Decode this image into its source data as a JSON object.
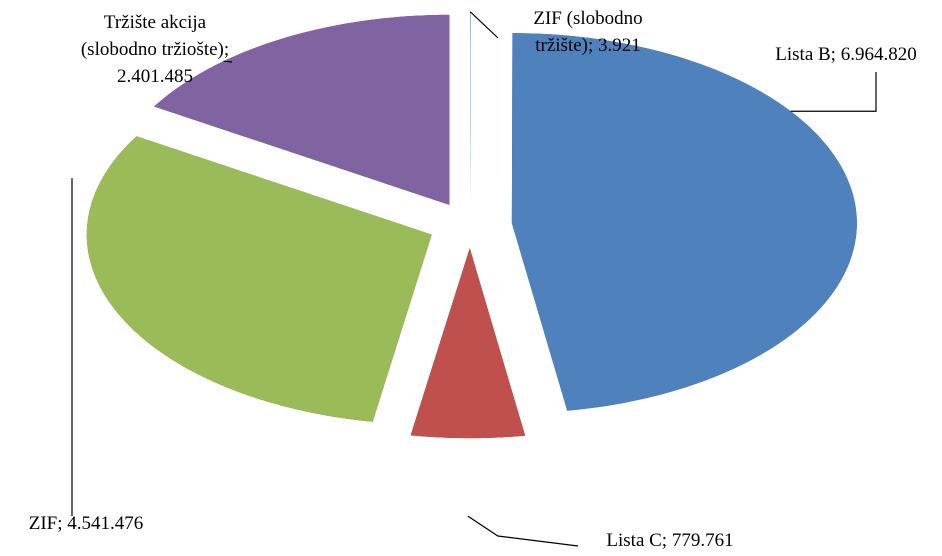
{
  "chart_data": {
    "type": "pie3d",
    "categories": [
      "ZIF (slobodno tržište)",
      "Lista B",
      "Lista C",
      "ZIF",
      "Tržište akcija (slobodno tržiošte)"
    ],
    "values": [
      3921,
      6964820,
      779761,
      4541476,
      2401485
    ],
    "value_labels": [
      [
        "ZIF (slobodno",
        "tržište); 3.921"
      ],
      [
        "Lista B; 6.964.820"
      ],
      [
        "Lista C; 779.761"
      ],
      [
        "ZIF; 4.541.476"
      ],
      [
        "Tržište akcija",
        "(slobodno tržiošte);",
        "2.401.485"
      ]
    ],
    "colors": [
      "#4bacc6",
      "#4f81bd",
      "#c0504d",
      "#9bbb59",
      "#8064a2"
    ]
  }
}
